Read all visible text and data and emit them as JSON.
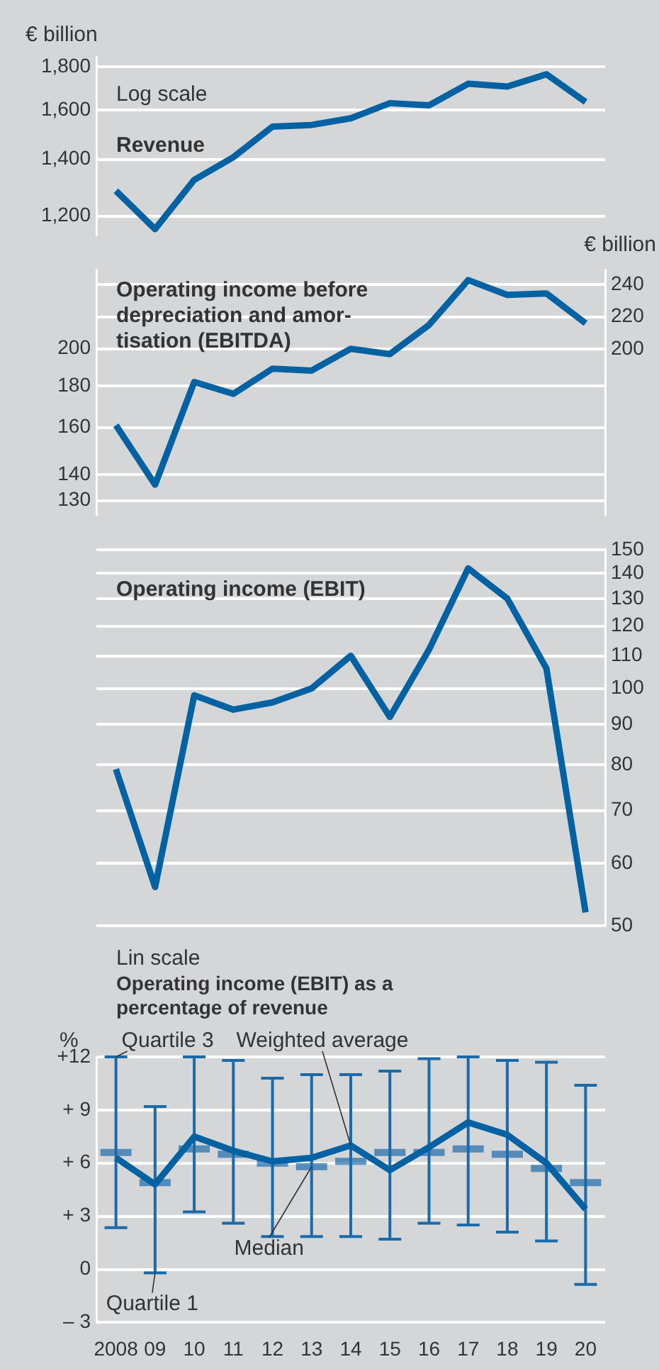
{
  "chart_data": [
    {
      "type": "line",
      "title": "Revenue",
      "ylabel": "€ billion",
      "annotations": [
        "Log scale"
      ],
      "categories": [
        "2008",
        "09",
        "10",
        "11",
        "12",
        "13",
        "14",
        "15",
        "16",
        "17",
        "18",
        "19",
        "20"
      ],
      "tick_labels": "y",
      "log": true,
      "grid": "y",
      "ylim": [
        1140,
        1850
      ],
      "yticks": [
        {
          "value": 1200,
          "label": "1,200"
        },
        {
          "value": 1400,
          "label": "1,400"
        },
        {
          "value": 1600,
          "label": "1,600"
        },
        {
          "value": 1800,
          "label": "1,800"
        }
      ],
      "series": [
        {
          "color": "#0062a3",
          "values": [
            1285,
            1158,
            1324,
            1408,
            1530,
            1537,
            1565,
            1631,
            1621,
            1719,
            1706,
            1764,
            1636
          ]
        }
      ]
    },
    {
      "type": "line",
      "title": "Operating income before depreciation and amor-tisation (EBITDA)",
      "y2label": "€ billion",
      "categories": [
        "2008",
        "09",
        "10",
        "11",
        "12",
        "13",
        "14",
        "15",
        "16",
        "17",
        "18",
        "19",
        "20"
      ],
      "tick_labels": "y",
      "log": true,
      "grid": "y",
      "ylim": [
        125,
        250
      ],
      "yticks": [
        130,
        140,
        160,
        180,
        200
      ],
      "y2lim": [
        97,
        249
      ],
      "y2ticks": [
        200,
        220,
        240
      ],
      "series": [
        {
          "color": "#0062a3",
          "values": [
            161,
            136,
            182,
            176,
            189,
            188,
            200,
            197,
            214,
            243,
            233,
            234,
            215
          ]
        }
      ]
    },
    {
      "type": "line",
      "title": "Operating income (EBIT)",
      "categories": [
        "2008",
        "09",
        "10",
        "11",
        "12",
        "13",
        "14",
        "15",
        "16",
        "17",
        "18",
        "19",
        "20"
      ],
      "tick_labels": "y",
      "log": "y2",
      "grid": "y",
      "y2lim": [
        50,
        150
      ],
      "y2ticks": [
        50,
        60,
        70,
        80,
        90,
        100,
        110,
        120,
        130,
        140,
        150
      ],
      "series": [
        {
          "color": "#0062a3",
          "axis": "y2",
          "values": [
            79,
            56,
            98,
            94,
            96,
            100,
            110,
            92,
            112,
            142,
            130,
            106,
            52
          ]
        }
      ]
    },
    {
      "type": "box",
      "title": "Operating income (EBIT) as a percentage of revenue",
      "ylabel": "%",
      "categories": [
        "2008",
        "09",
        "10",
        "11",
        "12",
        "13",
        "14",
        "15",
        "16",
        "17",
        "18",
        "19",
        "20"
      ],
      "grid": "y",
      "ylim": [
        -3,
        12
      ],
      "yticks": [
        {
          "value": 12,
          "label": "+12"
        },
        {
          "value": 9,
          "label": "+ 9"
        },
        {
          "value": 6,
          "label": "+ 6"
        },
        {
          "value": 3,
          "label": "+ 3"
        },
        0,
        {
          "value": -3,
          "label": "– 3"
        }
      ],
      "annotations": [
        "Lin scale",
        {
          "text": "Quartile 3",
          "x": "2008",
          "y": 12
        },
        {
          "text": "Quartile 1",
          "x": "09",
          "y": -0.2
        },
        {
          "text": "Weighted average",
          "x": "14",
          "y": 7.0
        },
        {
          "text": "Median",
          "x": "13",
          "y": 5.8
        }
      ],
      "series": [
        {
          "type": "box",
          "color": "#1b6aaa",
          "boxes": [
            {
              "low": 2.35,
              "q1": 2.35,
              "median": 6.6,
              "q3": 12.0,
              "high": 12.0
            },
            {
              "low": -0.2,
              "q1": -0.2,
              "median": 4.9,
              "q3": 9.2,
              "high": 9.2
            },
            {
              "low": 3.25,
              "q1": 3.25,
              "median": 6.8,
              "q3": 12.0,
              "high": 12.0
            },
            {
              "low": 2.6,
              "q1": 2.6,
              "median": 6.5,
              "q3": 11.8,
              "high": 11.8
            },
            {
              "low": 1.85,
              "q1": 1.85,
              "median": 6.0,
              "q3": 10.8,
              "high": 10.8
            },
            {
              "low": 1.85,
              "q1": 1.85,
              "median": 5.8,
              "q3": 11.0,
              "high": 11.0
            },
            {
              "low": 1.85,
              "q1": 1.85,
              "median": 6.1,
              "q3": 11.0,
              "high": 11.0
            },
            {
              "low": 1.7,
              "q1": 1.7,
              "median": 6.6,
              "q3": 11.2,
              "high": 11.2
            },
            {
              "low": 2.6,
              "q1": 2.6,
              "median": 6.6,
              "q3": 11.9,
              "high": 11.9
            },
            {
              "low": 2.5,
              "q1": 2.5,
              "median": 6.8,
              "q3": 12.0,
              "high": 12.0
            },
            {
              "low": 2.1,
              "q1": 2.1,
              "median": 6.5,
              "q3": 11.8,
              "high": 11.8
            },
            {
              "low": 1.6,
              "q1": 1.6,
              "median": 5.7,
              "q3": 11.7,
              "high": 11.7
            },
            {
              "low": -0.85,
              "q1": -0.85,
              "median": 4.9,
              "q3": 10.4,
              "high": 10.4
            }
          ]
        },
        {
          "type": "line",
          "color": "#0062a3",
          "values": [
            6.3,
            4.8,
            7.5,
            6.7,
            6.1,
            6.3,
            7.0,
            5.6,
            6.9,
            8.3,
            7.6,
            6.0,
            3.4
          ]
        }
      ]
    }
  ]
}
